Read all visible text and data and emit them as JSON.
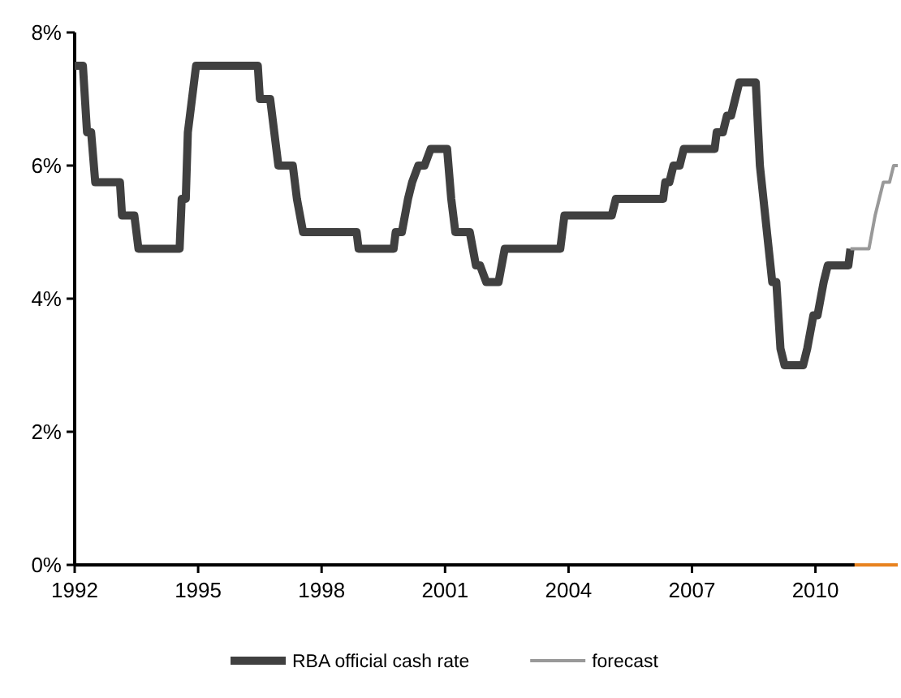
{
  "chart_data": {
    "type": "line",
    "xlim": [
      1992,
      2012
    ],
    "xticks": [
      1992,
      1995,
      1998,
      2001,
      2004,
      2007,
      2010
    ],
    "ylim": [
      0,
      8
    ],
    "yticks": [
      {
        "value": 0,
        "label": "0%"
      },
      {
        "value": 2,
        "label": "2%"
      },
      {
        "value": 4,
        "label": "4%"
      },
      {
        "value": 6,
        "label": "6%"
      },
      {
        "value": 8,
        "label": "8%"
      }
    ],
    "grid": false,
    "legend": "bottom",
    "marker": "none",
    "line_style": "solid",
    "series": [
      {
        "name": "RBA official cash rate",
        "color": "#404040",
        "x": [
          1992.0,
          1992.2,
          1992.3,
          1992.4,
          1992.5,
          1993.1,
          1993.15,
          1993.45,
          1993.55,
          1994.55,
          1994.6,
          1994.7,
          1994.75,
          1994.95,
          1996.45,
          1996.5,
          1996.75,
          1996.95,
          1997.3,
          1997.4,
          1997.55,
          1998.85,
          1998.9,
          1999.75,
          1999.8,
          1999.95,
          2000.1,
          2000.2,
          2000.35,
          2000.5,
          2000.65,
          2001.05,
          2001.15,
          2001.25,
          2001.6,
          2001.75,
          2001.85,
          2002.0,
          2002.3,
          2002.45,
          2003.8,
          2003.9,
          2005.05,
          2005.15,
          2006.3,
          2006.35,
          2006.45,
          2006.55,
          2006.7,
          2006.8,
          2007.55,
          2007.6,
          2007.75,
          2007.85,
          2007.95,
          2008.05,
          2008.15,
          2008.55,
          2008.65,
          2008.95,
          2009.05,
          2009.15,
          2009.25,
          2009.7,
          2009.8,
          2009.95,
          2010.05,
          2010.2,
          2010.3,
          2010.8,
          2010.85
        ],
        "values": [
          7.5,
          7.5,
          6.5,
          6.5,
          5.75,
          5.75,
          5.25,
          5.25,
          4.75,
          4.75,
          5.5,
          5.5,
          6.5,
          7.5,
          7.5,
          7.0,
          7.0,
          6.0,
          6.0,
          5.5,
          5.0,
          5.0,
          4.75,
          4.75,
          5.0,
          5.0,
          5.5,
          5.75,
          6.0,
          6.0,
          6.25,
          6.25,
          5.5,
          5.0,
          5.0,
          4.5,
          4.5,
          4.25,
          4.25,
          4.75,
          4.75,
          5.25,
          5.25,
          5.5,
          5.5,
          5.75,
          5.75,
          6.0,
          6.0,
          6.25,
          6.25,
          6.5,
          6.5,
          6.75,
          6.75,
          7.0,
          7.25,
          7.25,
          6.0,
          4.25,
          4.25,
          3.25,
          3.0,
          3.0,
          3.25,
          3.75,
          3.75,
          4.25,
          4.5,
          4.5,
          4.75
        ]
      },
      {
        "name": "forecast",
        "color": "#999999",
        "x": [
          2010.85,
          2011.3,
          2011.45,
          2011.55,
          2011.65,
          2011.8,
          2011.9,
          2012.0
        ],
        "values": [
          4.75,
          4.75,
          5.25,
          5.5,
          5.75,
          5.75,
          6.0,
          6.0
        ]
      },
      {
        "color": "#e8821e",
        "x": [
          2010.95,
          2012.0
        ],
        "values": [
          0,
          0
        ]
      }
    ]
  }
}
